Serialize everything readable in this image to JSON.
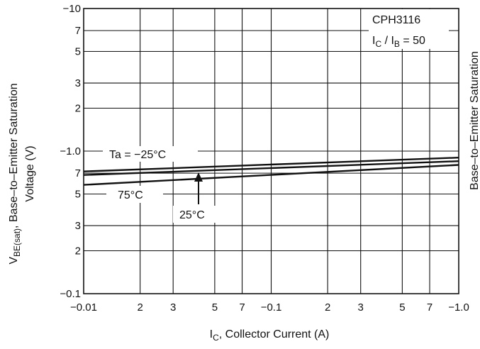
{
  "chart_data": {
    "type": "line",
    "title": "",
    "xlabel": {
      "main": "I",
      "sub": "C",
      "rest": ", Collector Current (A)"
    },
    "ylabel": {
      "line1_main": "V",
      "line1_sub": "BE(sat)",
      "line1_rest": ", Base–to–Emitter Saturation",
      "line2": "Voltage (V)"
    },
    "x_scale": "log",
    "y_scale": "log",
    "xlim": [
      -0.01,
      -1.0
    ],
    "ylim": [
      -0.1,
      -10
    ],
    "grid": true,
    "x_major_ticks": [
      {
        "value": -0.01,
        "label": "−0.01"
      },
      {
        "value": -0.1,
        "label": "−0.1"
      },
      {
        "value": -1.0,
        "label": "−1.0"
      }
    ],
    "x_minor_ticks": [
      {
        "value": -0.02,
        "label": "2"
      },
      {
        "value": -0.03,
        "label": "3"
      },
      {
        "value": -0.05,
        "label": "5"
      },
      {
        "value": -0.07,
        "label": "7"
      },
      {
        "value": -0.2,
        "label": "2"
      },
      {
        "value": -0.3,
        "label": "3"
      },
      {
        "value": -0.5,
        "label": "5"
      },
      {
        "value": -0.7,
        "label": "7"
      }
    ],
    "y_major_ticks": [
      {
        "value": -0.1,
        "label": "−0.1"
      },
      {
        "value": -1.0,
        "label": "−1.0"
      },
      {
        "value": -10,
        "label": "−10"
      }
    ],
    "y_minor_ticks": [
      {
        "value": -0.2,
        "label": "2"
      },
      {
        "value": -0.3,
        "label": "3"
      },
      {
        "value": -0.5,
        "label": "5"
      },
      {
        "value": -0.7,
        "label": "7"
      },
      {
        "value": -2,
        "label": "2"
      },
      {
        "value": -3,
        "label": "3"
      },
      {
        "value": -5,
        "label": "5"
      },
      {
        "value": -7,
        "label": "7"
      }
    ],
    "series": [
      {
        "name": "Ta = −25°C",
        "x": [
          -0.01,
          -1.0
        ],
        "y": [
          -0.72,
          -0.9
        ]
      },
      {
        "name": "25°C",
        "x": [
          -0.01,
          -1.0
        ],
        "y": [
          -0.68,
          -0.85
        ]
      },
      {
        "name": "75°C",
        "x": [
          -0.01,
          -1.0
        ],
        "y": [
          -0.58,
          -0.8
        ]
      }
    ],
    "annotations": {
      "device": "CPH3116",
      "condition": {
        "main1": "I",
        "sub1": "C",
        "mid": " / I",
        "sub2": "B",
        "rest": " = 50"
      },
      "label_ta25neg": "Ta = −25°C",
      "label_75": "75°C",
      "label_25": "25°C"
    },
    "right_clipped_text": "Base–to–Emitter Saturation"
  }
}
